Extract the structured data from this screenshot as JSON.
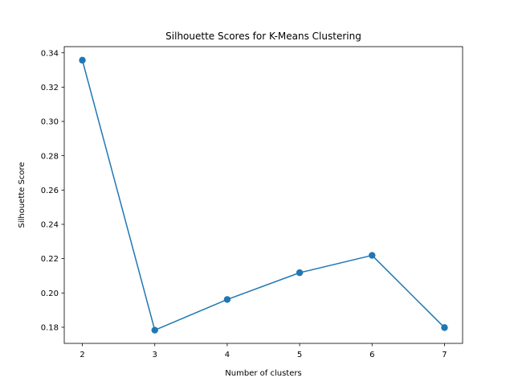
{
  "chart_data": {
    "type": "line",
    "title": "Silhouette Scores for K-Means Clustering",
    "xlabel": "Number of clusters",
    "ylabel": "Silhouette Score",
    "x": [
      2,
      3,
      4,
      5,
      6,
      7
    ],
    "series": [
      {
        "values": [
          0.3357,
          0.1783,
          0.1962,
          0.2118,
          0.2219,
          0.1798
        ],
        "color": "#1f77b4",
        "marker": "circle"
      }
    ],
    "xlim": [
      1.75,
      7.25
    ],
    "ylim": [
      0.1706,
      0.3436
    ],
    "xticks": [
      2,
      3,
      4,
      5,
      6,
      7
    ],
    "xtick_labels": [
      "2",
      "3",
      "4",
      "5",
      "6",
      "7"
    ],
    "yticks": [
      0.18,
      0.2,
      0.22,
      0.24,
      0.26,
      0.28,
      0.3,
      0.32,
      0.34
    ],
    "ytick_labels": [
      "0.18",
      "0.20",
      "0.22",
      "0.24",
      "0.26",
      "0.28",
      "0.30",
      "0.32",
      "0.34"
    ],
    "grid": false,
    "legend": "none"
  }
}
